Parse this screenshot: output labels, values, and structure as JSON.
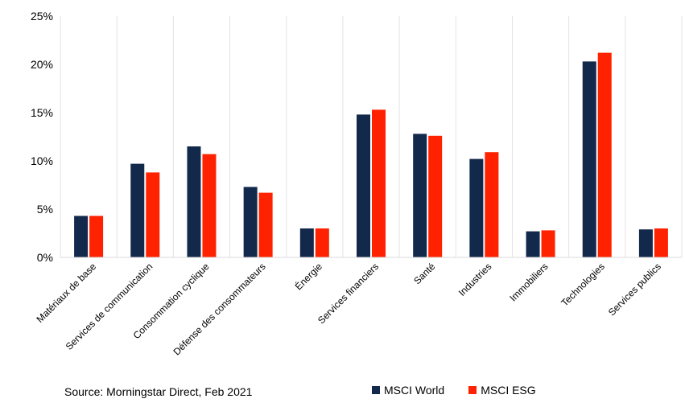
{
  "chart_data": {
    "type": "bar",
    "categories": [
      "Matériaux de base",
      "Services de communication",
      "Consommation cyclique",
      "Défense des consommateurs",
      "Énergie",
      "Services financiers",
      "Santé",
      "Industries",
      "Immobiliers",
      "Technologies",
      "Services publics"
    ],
    "series": [
      {
        "name": "MSCI World",
        "color": "#13294b",
        "values": [
          4.3,
          9.7,
          11.5,
          7.3,
          3.0,
          14.8,
          12.8,
          10.2,
          2.7,
          20.3,
          2.9
        ]
      },
      {
        "name": "MSCI ESG",
        "color": "#ff2200",
        "values": [
          4.3,
          8.8,
          10.7,
          6.7,
          3.0,
          15.3,
          12.6,
          10.9,
          2.8,
          21.2,
          3.0
        ]
      }
    ],
    "yticks": [
      "0%",
      "5%",
      "10%",
      "15%",
      "20%",
      "25%"
    ],
    "ylim": [
      0,
      25
    ],
    "grid": "vertical",
    "legend_position": "bottom-right",
    "source": "Source: Morningstar Direct, Feb 2021"
  }
}
